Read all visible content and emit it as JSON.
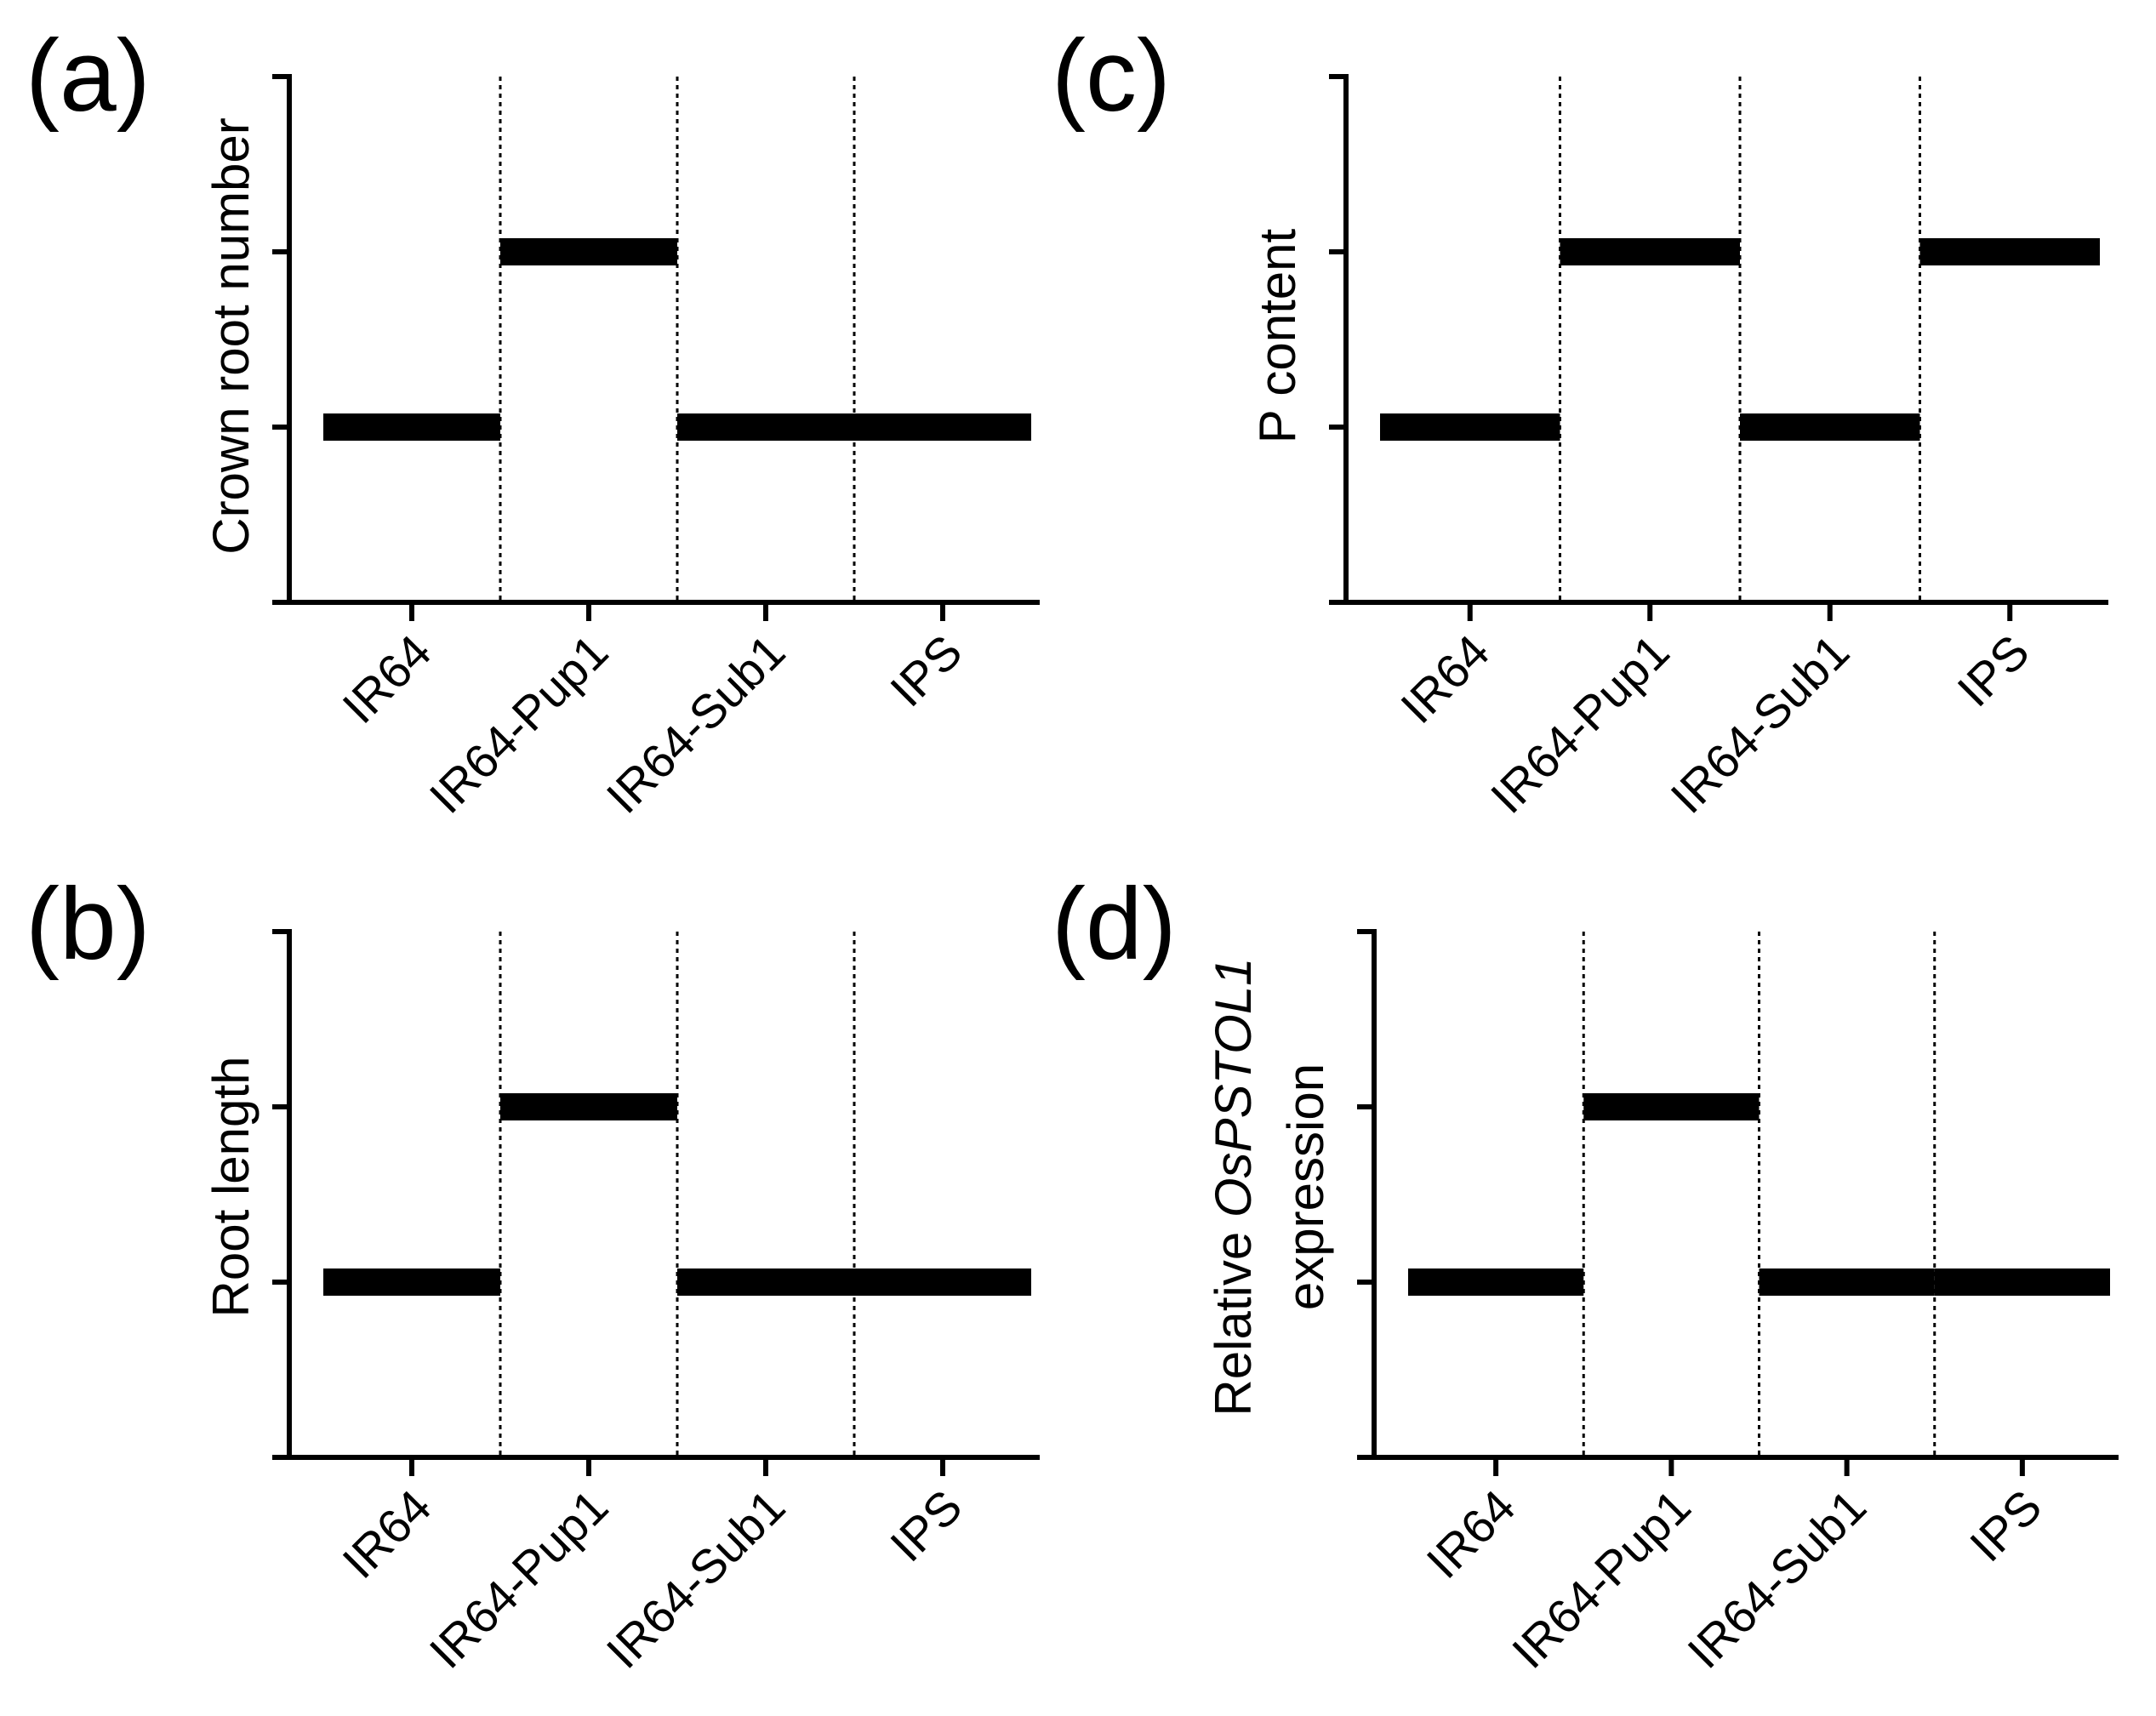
{
  "chart_data": [
    {
      "panel": "(a)",
      "type": "step",
      "ylabel": "Crown root number",
      "categories": [
        "IR64",
        "IR64-Pup1",
        "IR64-Sub1",
        "IPS"
      ],
      "values": [
        1,
        2,
        1,
        1
      ],
      "ylim": [
        0,
        3
      ]
    },
    {
      "panel": "(b)",
      "type": "step",
      "ylabel": "Root length",
      "categories": [
        "IR64",
        "IR64-Pup1",
        "IR64-Sub1",
        "IPS"
      ],
      "values": [
        1,
        2,
        1,
        1
      ],
      "ylim": [
        0,
        3
      ]
    },
    {
      "panel": "(c)",
      "type": "step",
      "ylabel": "P content",
      "categories": [
        "IR64",
        "IR64-Pup1",
        "IR64-Sub1",
        "IPS"
      ],
      "values": [
        1,
        2,
        1,
        2
      ],
      "ylim": [
        0,
        3
      ]
    },
    {
      "panel": "(d)",
      "type": "step",
      "ylabel_prefix": "Relative ",
      "ylabel_gene": "OsPSTOL1",
      "ylabel_line2": "expression",
      "categories": [
        "IR64",
        "IR64-Pup1",
        "IR64-Sub1",
        "IPS"
      ],
      "values": [
        1,
        2,
        1,
        1
      ],
      "ylim": [
        0,
        3
      ]
    }
  ]
}
